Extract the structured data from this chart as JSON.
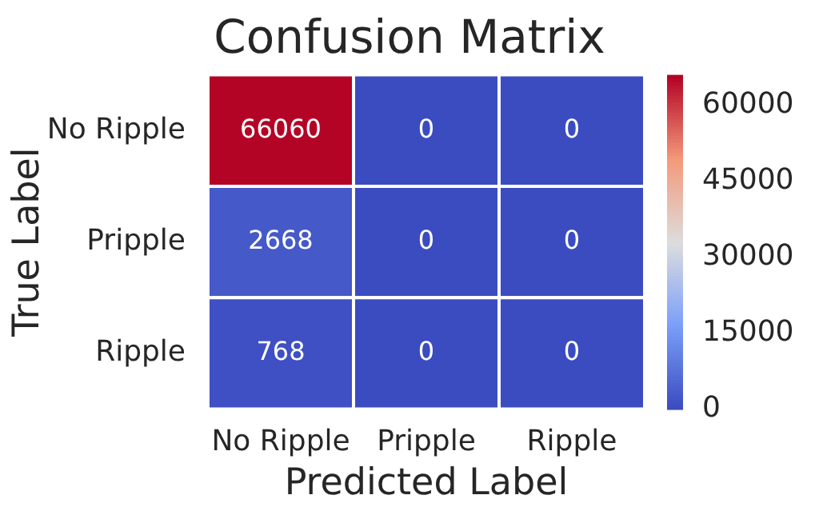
{
  "chart_data": {
    "type": "heatmap",
    "title": "Confusion Matrix",
    "xlabel": "Predicted Label",
    "ylabel": "True Label",
    "categories": [
      "No Ripple",
      "Pripple",
      "Ripple"
    ],
    "y_categories": [
      "No Ripple",
      "Pripple",
      "Ripple"
    ],
    "cells": [
      [
        66060,
        0,
        0
      ],
      [
        2668,
        0,
        0
      ],
      [
        768,
        0,
        0
      ]
    ],
    "clim": [
      0,
      66060
    ],
    "cticks": [
      0,
      15000,
      30000,
      45000,
      60000
    ],
    "data_labels": true
  }
}
